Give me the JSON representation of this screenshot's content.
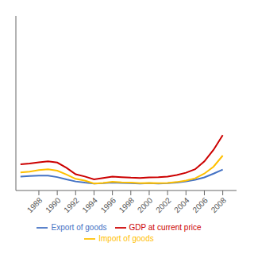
{
  "chart_data": {
    "type": "line",
    "x": [
      1986,
      1987,
      1988,
      1989,
      1990,
      1991,
      1992,
      1993,
      1994,
      1995,
      1996,
      1997,
      1998,
      1999,
      2000,
      2001,
      2002,
      2003,
      2004,
      2005,
      2006,
      2007,
      2008
    ],
    "series": [
      {
        "name": "GDP at current price",
        "color": "#cc0000",
        "values": [
          900,
          930,
          970,
          1000,
          960,
          780,
          560,
          480,
          380,
          430,
          480,
          460,
          440,
          430,
          450,
          460,
          480,
          530,
          610,
          730,
          1000,
          1400,
          1900
        ]
      },
      {
        "name": "Export of goods",
        "color": "#4472c4",
        "values": [
          480,
          500,
          510,
          510,
          460,
          380,
          310,
          270,
          240,
          250,
          270,
          260,
          250,
          240,
          250,
          240,
          250,
          270,
          310,
          370,
          450,
          580,
          720
        ]
      },
      {
        "name": "Import of goods",
        "color": "#ffc000",
        "values": [
          620,
          650,
          700,
          730,
          680,
          550,
          400,
          340,
          240,
          260,
          300,
          280,
          270,
          250,
          260,
          250,
          260,
          290,
          340,
          420,
          580,
          820,
          1200
        ]
      }
    ],
    "xlim": [
      1985.5,
      2009.5
    ],
    "xticks": [
      1988,
      1990,
      1992,
      1994,
      1996,
      1998,
      2000,
      2002,
      2004,
      2006,
      2008
    ],
    "ylim": [
      0,
      6000
    ],
    "grid": false,
    "tick_labels": "x"
  }
}
